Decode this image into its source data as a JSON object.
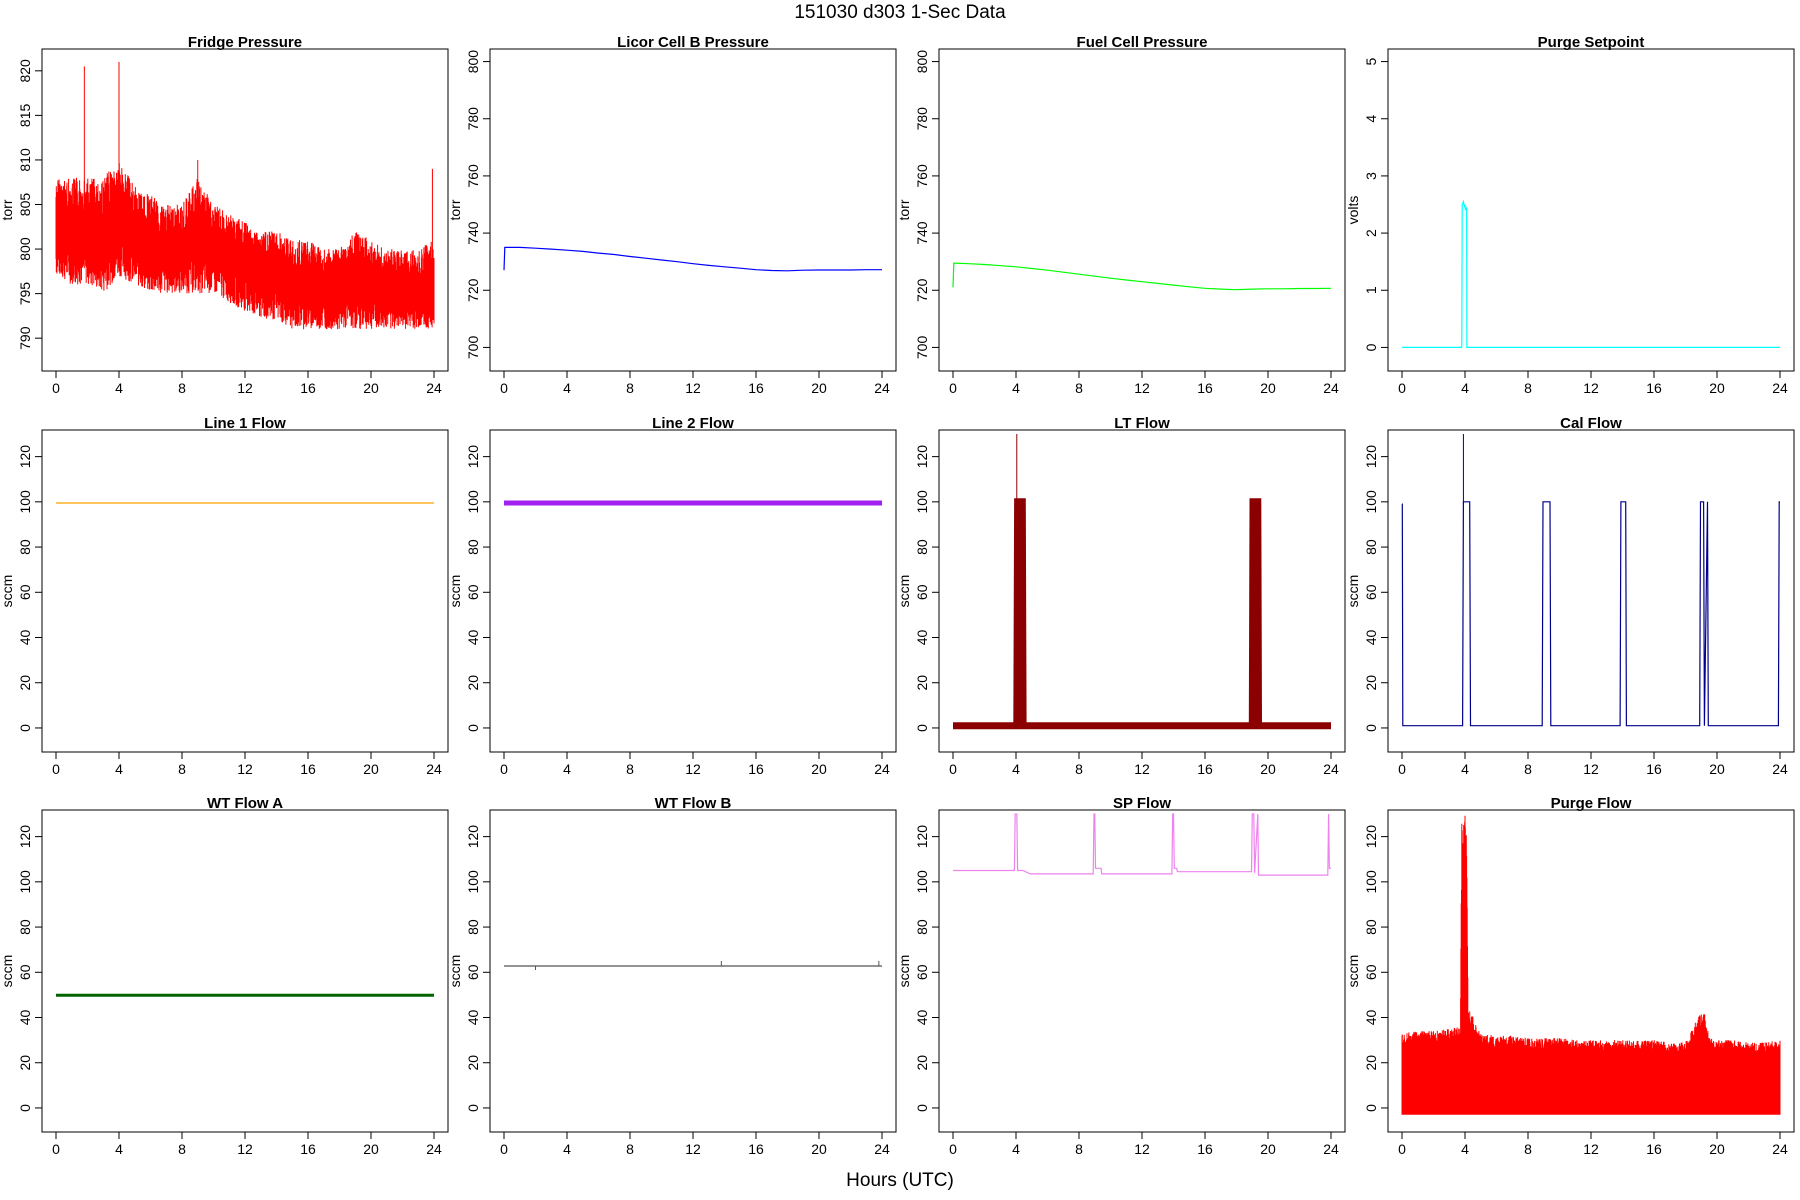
{
  "figure": {
    "title": "151030   d303   1-Sec Data",
    "xlabel": "Hours (UTC)"
  },
  "chart_data": [
    {
      "id": "fridge",
      "type": "line",
      "title": "Fridge Pressure",
      "ylabel": "torr",
      "color": "#ff0000",
      "xlim": [
        0,
        24
      ],
      "xticks": [
        0,
        4,
        8,
        12,
        16,
        20,
        24
      ],
      "ylim": [
        788,
        822
      ],
      "yticks": [
        790,
        795,
        800,
        805,
        810,
        815,
        820
      ],
      "x": [
        0,
        1,
        2,
        3,
        4,
        5,
        6,
        7,
        8,
        9,
        10,
        11,
        12,
        13,
        14,
        15,
        16,
        17,
        18,
        19,
        20,
        21,
        22,
        23,
        24
      ],
      "y_mid": [
        802,
        802,
        802,
        802,
        803,
        802,
        801,
        800,
        800,
        801,
        800,
        799,
        798,
        797,
        797,
        796,
        796,
        795,
        795,
        796,
        796,
        795,
        795,
        795,
        796
      ],
      "y_low": [
        797,
        796,
        796,
        795,
        797,
        796,
        795,
        795,
        795,
        795,
        795,
        794,
        793,
        792,
        792,
        791,
        791,
        791,
        791,
        791,
        791,
        791,
        791,
        791,
        791
      ],
      "y_high": [
        808,
        808,
        808,
        808,
        810,
        807,
        806,
        805,
        805,
        808,
        805,
        804,
        803,
        802,
        802,
        801,
        801,
        800,
        800,
        802,
        801,
        800,
        800,
        800,
        801
      ],
      "spikes": [
        {
          "x": 1.8,
          "y": 820.5
        },
        {
          "x": 4.0,
          "y": 821
        },
        {
          "x": 9.0,
          "y": 810
        },
        {
          "x": 23.9,
          "y": 809
        }
      ]
    },
    {
      "id": "licor",
      "type": "line",
      "title": "Licor Cell B Pressure",
      "ylabel": "torr",
      "color": "#0000ff",
      "xlim": [
        0,
        24
      ],
      "xticks": [
        0,
        4,
        8,
        12,
        16,
        20,
        24
      ],
      "ylim": [
        697,
        803
      ],
      "yticks": [
        700,
        720,
        740,
        760,
        780,
        800
      ],
      "x": [
        0,
        0.05,
        1,
        2,
        3,
        4,
        5,
        6,
        7,
        8,
        9,
        10,
        11,
        12,
        13,
        14,
        15,
        16,
        17,
        18,
        19,
        20,
        21,
        22,
        23,
        24
      ],
      "y": [
        727,
        735,
        735,
        734.7,
        734.4,
        734,
        733.6,
        733,
        732.5,
        731.8,
        731.2,
        730.6,
        730,
        729.3,
        728.7,
        728.2,
        727.7,
        727.2,
        726.9,
        726.8,
        727,
        727.1,
        727.1,
        727.1,
        727.2,
        727.2
      ]
    },
    {
      "id": "fuelcell",
      "type": "line",
      "title": "Fuel Cell Pressure",
      "ylabel": "torr",
      "color": "#00ff00",
      "xlim": [
        0,
        24
      ],
      "xticks": [
        0,
        4,
        8,
        12,
        16,
        20,
        24
      ],
      "ylim": [
        697,
        803
      ],
      "yticks": [
        700,
        720,
        740,
        760,
        780,
        800
      ],
      "x": [
        0,
        0.05,
        1,
        2,
        3,
        4,
        5,
        6,
        7,
        8,
        9,
        10,
        11,
        12,
        13,
        14,
        15,
        16,
        17,
        18,
        19,
        20,
        21,
        22,
        23,
        24
      ],
      "y": [
        721,
        729.5,
        729.3,
        729,
        728.6,
        728.2,
        727.6,
        727,
        726.3,
        725.6,
        724.9,
        724.2,
        723.6,
        723,
        722.4,
        721.8,
        721.2,
        720.7,
        720.4,
        720.2,
        720.4,
        720.5,
        720.5,
        720.6,
        720.6,
        720.7
      ]
    },
    {
      "id": "purgesp",
      "type": "line",
      "title": "Purge Setpoint",
      "ylabel": "volts",
      "color": "#00ffff",
      "xlim": [
        0,
        24
      ],
      "xticks": [
        0,
        4,
        8,
        12,
        16,
        20,
        24
      ],
      "ylim": [
        -0.15,
        5.15
      ],
      "yticks": [
        0,
        1,
        2,
        3,
        4,
        5
      ],
      "x": [
        0,
        3.8,
        3.82,
        3.9,
        3.97,
        4.0,
        4.02,
        4.1,
        4.12,
        24
      ],
      "y": [
        0,
        0,
        2.5,
        2.55,
        2.45,
        2.5,
        2.4,
        2.45,
        0,
        0
      ]
    },
    {
      "id": "line1",
      "type": "line",
      "title": "Line 1 Flow",
      "ylabel": "sccm",
      "color": "#ffa500",
      "xlim": [
        0,
        24
      ],
      "xticks": [
        0,
        4,
        8,
        12,
        16,
        20,
        24
      ],
      "ylim": [
        -4,
        130
      ],
      "yticks": [
        0,
        20,
        40,
        60,
        80,
        100,
        120
      ],
      "x": [
        0,
        24
      ],
      "y": [
        99.5,
        99.5
      ]
    },
    {
      "id": "line2",
      "type": "line",
      "title": "Line 2 Flow",
      "ylabel": "sccm",
      "color": "#a020f0",
      "width": 5,
      "xlim": [
        0,
        24
      ],
      "xticks": [
        0,
        4,
        8,
        12,
        16,
        20,
        24
      ],
      "ylim": [
        -4,
        130
      ],
      "yticks": [
        0,
        20,
        40,
        60,
        80,
        100,
        120
      ],
      "x": [
        0,
        24
      ],
      "y": [
        99.5,
        99.5
      ]
    },
    {
      "id": "ltflow",
      "type": "line",
      "title": "LT Flow",
      "ylabel": "sccm",
      "color": "#8b0000",
      "width": 7,
      "xlim": [
        0,
        24
      ],
      "xticks": [
        0,
        4,
        8,
        12,
        16,
        20,
        24
      ],
      "ylim": [
        -4,
        130
      ],
      "yticks": [
        0,
        20,
        40,
        60,
        80,
        100,
        120
      ],
      "x": [
        0,
        4.05,
        4.1,
        4.4,
        4.45,
        19.0,
        19.05,
        19.35,
        19.4,
        24
      ],
      "y": [
        1,
        1,
        100,
        100,
        1,
        1,
        100,
        100,
        1,
        1
      ],
      "spikes": [
        {
          "x": 4.05,
          "y": 130
        }
      ]
    },
    {
      "id": "calflow",
      "type": "line",
      "title": "Cal Flow",
      "ylabel": "sccm",
      "color": "#00008b",
      "xlim": [
        0,
        24
      ],
      "xticks": [
        0,
        4,
        8,
        12,
        16,
        20,
        24
      ],
      "ylim": [
        -4,
        130
      ],
      "yticks": [
        0,
        20,
        40,
        60,
        80,
        100,
        120
      ],
      "x": [
        0,
        0.02,
        0.05,
        3.85,
        3.9,
        4.3,
        4.35,
        8.9,
        8.95,
        9.4,
        9.45,
        13.85,
        13.9,
        14.2,
        14.25,
        18.9,
        18.95,
        19.15,
        19.2,
        19.4,
        19.45,
        23.9,
        23.95,
        24
      ],
      "y": [
        99,
        99,
        1,
        1,
        100,
        100,
        1,
        1,
        100,
        100,
        1,
        1,
        100,
        100,
        1,
        1,
        100,
        100,
        1,
        100,
        1,
        1,
        100,
        100
      ],
      "spikes": [
        {
          "x": 3.9,
          "y": 130
        }
      ]
    },
    {
      "id": "wtflowa",
      "type": "line",
      "title": "WT Flow A",
      "ylabel": "sccm",
      "color": "#006400",
      "width": 3,
      "xlim": [
        0,
        24
      ],
      "xticks": [
        0,
        4,
        8,
        12,
        16,
        20,
        24
      ],
      "ylim": [
        -4,
        130
      ],
      "yticks": [
        0,
        20,
        40,
        60,
        80,
        100,
        120
      ],
      "x": [
        0,
        24
      ],
      "y": [
        49.8,
        49.8
      ]
    },
    {
      "id": "wtflowb",
      "type": "line",
      "title": "WT Flow B",
      "ylabel": "sccm",
      "color": "#555555",
      "xlim": [
        0,
        24
      ],
      "xticks": [
        0,
        4,
        8,
        12,
        16,
        20,
        24
      ],
      "ylim": [
        -4,
        130
      ],
      "yticks": [
        0,
        20,
        40,
        60,
        80,
        100,
        120
      ],
      "x": [
        0,
        24
      ],
      "y": [
        62.8,
        62.8
      ],
      "spikes": [
        {
          "x": 2.0,
          "y": 61
        },
        {
          "x": 13.8,
          "y": 65
        },
        {
          "x": 23.8,
          "y": 65
        }
      ]
    },
    {
      "id": "spflow",
      "type": "line",
      "title": "SP Flow",
      "ylabel": "sccm",
      "color": "#ee82ee",
      "xlim": [
        0,
        24
      ],
      "xticks": [
        0,
        4,
        8,
        12,
        16,
        20,
        24
      ],
      "ylim": [
        -4,
        130
      ],
      "yticks": [
        0,
        20,
        40,
        60,
        80,
        100,
        120
      ],
      "x": [
        0,
        3.9,
        3.95,
        4.05,
        4.1,
        4.4,
        4.45,
        4.9,
        5.0,
        8.9,
        8.95,
        9.0,
        9.05,
        9.4,
        9.45,
        13.9,
        13.95,
        14.0,
        14.05,
        14.2,
        14.25,
        18.95,
        19.0,
        19.1,
        19.15,
        19.35,
        19.4,
        23.8,
        23.85,
        23.9,
        24
      ],
      "y": [
        105,
        105,
        130,
        130,
        105,
        105,
        105,
        103.5,
        103.5,
        103.5,
        130,
        130,
        106,
        106,
        103.5,
        103.5,
        130,
        130,
        106,
        106,
        104.5,
        104.5,
        130,
        130,
        104,
        130,
        103,
        103,
        130,
        106,
        106
      ]
    },
    {
      "id": "purgeflow",
      "type": "area",
      "title": "Purge Flow",
      "ylabel": "sccm",
      "color": "#ff0000",
      "xlim": [
        0,
        24
      ],
      "xticks": [
        0,
        4,
        8,
        12,
        16,
        20,
        24
      ],
      "ylim": [
        -4,
        130
      ],
      "yticks": [
        0,
        20,
        40,
        60,
        80,
        100,
        120
      ],
      "x": [
        0,
        1,
        2,
        3,
        3.7,
        3.8,
        4.1,
        4.2,
        5,
        6,
        7,
        8,
        9,
        10,
        11,
        12,
        13,
        14,
        15,
        16,
        17,
        18,
        18.9,
        19.2,
        19.5,
        20,
        21,
        22,
        23,
        24
      ],
      "y_low": [
        -3,
        -3,
        -3,
        -3,
        -3,
        -3,
        -3,
        -3,
        -3,
        -3,
        -3,
        -3,
        -3,
        -3,
        -3,
        -3,
        -3,
        -3,
        -3,
        -3,
        -3,
        -3,
        -3,
        -3,
        -3,
        -3,
        -3,
        -3,
        -3,
        -3
      ],
      "y_high": [
        33,
        34,
        34,
        35,
        36,
        130,
        130,
        45,
        33,
        32,
        32,
        31,
        31,
        31,
        30,
        30,
        30,
        30,
        30,
        30,
        29,
        29,
        42,
        43,
        31,
        30,
        30,
        29,
        29,
        30
      ]
    }
  ]
}
